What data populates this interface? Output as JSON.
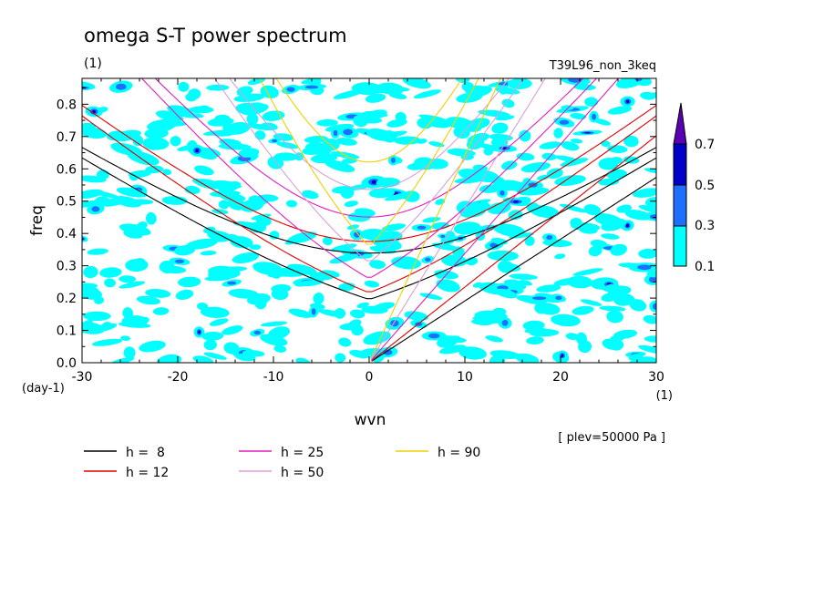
{
  "chart_data": {
    "type": "heatmap",
    "title": "omega S-T power spectrum",
    "title_unit": "(1)",
    "run_label": "T39L96_non_3keq",
    "xlabel": "wvn",
    "x_unit": "(1)",
    "ylabel": "freq",
    "y_unit": "(day-1)",
    "xlim": [
      -30,
      30
    ],
    "ylim": [
      0,
      0.88
    ],
    "xticks": [
      "-30",
      "-20",
      "-10",
      "0",
      "10",
      "20",
      "30"
    ],
    "xtick_values": [
      -30,
      -20,
      -10,
      0,
      10,
      20,
      30
    ],
    "yticks": [
      "0.0",
      "0.1",
      "0.2",
      "0.3",
      "0.4",
      "0.5",
      "0.6",
      "0.7",
      "0.8"
    ],
    "ytick_values": [
      0,
      0.1,
      0.2,
      0.3,
      0.4,
      0.5,
      0.6,
      0.7,
      0.8
    ],
    "level_note": "[ plev=50000 Pa ]",
    "colorbar": {
      "levels": [
        "0.1",
        "0.3",
        "0.5",
        "0.7"
      ],
      "level_values": [
        0.1,
        0.3,
        0.5,
        0.7
      ],
      "colors": [
        "#00ffff",
        "#1f6fff",
        "#0000c8",
        "#5a00b4"
      ]
    },
    "series": [
      {
        "label": "h =  8",
        "h": 8,
        "color": "#000000"
      },
      {
        "label": "h = 12",
        "h": 12,
        "color": "#e00000"
      },
      {
        "label": "h = 25",
        "h": 25,
        "color": "#e020c0"
      },
      {
        "label": "h = 50",
        "h": 50,
        "color": "#d8a0d8"
      },
      {
        "label": "h = 90",
        "h": 90,
        "color": "#f0d000"
      }
    ]
  }
}
